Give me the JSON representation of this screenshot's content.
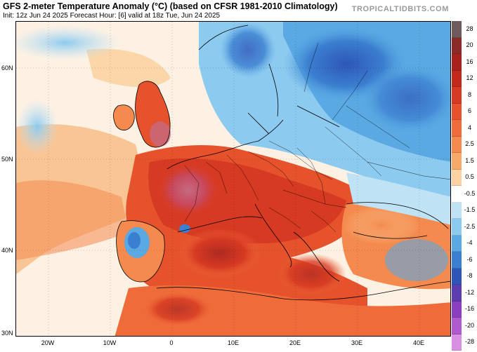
{
  "header": {
    "title": "GFS 2-meter Temperature Anomaly (°C) (based on CFSR 1981-2010 Climatology)",
    "subtitle": "Init: 12z Jun 24 2025   Forecast Hour: [6]   valid at 18z Tue, Jun 24 2025",
    "brand": "TROPICALTIDBITS.COM"
  },
  "axes": {
    "lat_labels": [
      "60N",
      "50N",
      "40N",
      "30N"
    ],
    "lon_labels": [
      "20W",
      "10W",
      "0",
      "10E",
      "20E",
      "30E",
      "40E"
    ]
  },
  "colorbar": {
    "levels": [
      {
        "label": "28",
        "color": "#6e5a5a"
      },
      {
        "label": "20",
        "color": "#8c2a2a"
      },
      {
        "label": "16",
        "color": "#a8211d"
      },
      {
        "label": "12",
        "color": "#c2281c"
      },
      {
        "label": "8",
        "color": "#d73a22"
      },
      {
        "label": "6",
        "color": "#e5522c"
      },
      {
        "label": "4",
        "color": "#ef6c3a"
      },
      {
        "label": "2.5",
        "color": "#f48a4e"
      },
      {
        "label": "1.5",
        "color": "#f7a96a"
      },
      {
        "label": "0.5",
        "color": "#fbd3a2"
      },
      {
        "label": "-0.5",
        "color": "#ffffff"
      },
      {
        "label": "-1.5",
        "color": "#bfe3f5"
      },
      {
        "label": "-2.5",
        "color": "#8dcaef"
      },
      {
        "label": "-4",
        "color": "#5aa9e3"
      },
      {
        "label": "-6",
        "color": "#3b7fd0"
      },
      {
        "label": "-8",
        "color": "#2e56b8"
      },
      {
        "label": "-12",
        "color": "#5b3db0"
      },
      {
        "label": "-16",
        "color": "#8a3fc0"
      },
      {
        "label": "-20",
        "color": "#b05ad0"
      },
      {
        "label": "-28",
        "color": "#d990e3"
      }
    ]
  },
  "map": {
    "colors": {
      "ocean_neutral": "#fdf1e4",
      "warm_light": "#f7a96a",
      "warm_mid": "#ef6c3a",
      "warm_strong": "#d73a22",
      "hot": "#b02a22",
      "hot_pink": "#c56a82",
      "cool_light": "#bfe3f5",
      "cool_mid": "#5aa9e3",
      "cool_strong": "#2e56b8",
      "purple": "#5b3db0",
      "border": "#000000"
    }
  }
}
